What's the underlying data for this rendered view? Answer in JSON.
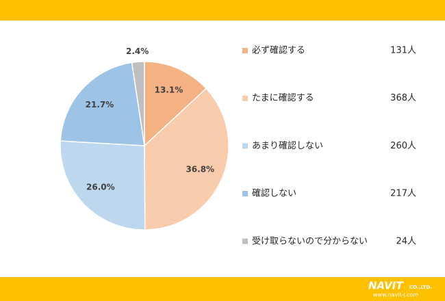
{
  "chart_data": {
    "type": "pie",
    "categories": [
      "必ず確認する",
      "たまに確認する",
      "あまり確認しない",
      "確認しない",
      "受け取らないので分からない"
    ],
    "values": [
      13.1,
      36.8,
      26.0,
      21.7,
      2.4
    ],
    "value_labels": [
      "13.1%",
      "36.8%",
      "26.0%",
      "21.7%",
      "2.4%"
    ],
    "count_labels": [
      "131人",
      "368人",
      "260人",
      "217人",
      "24人"
    ],
    "colors": [
      "#f4b183",
      "#f8cbad",
      "#bdd7ee",
      "#9dc3e6",
      "#bfbfbf"
    ]
  },
  "logo": {
    "name": "NAVIT",
    "suffix": "CO.,LTD.",
    "url": "www.navit-j.com"
  }
}
